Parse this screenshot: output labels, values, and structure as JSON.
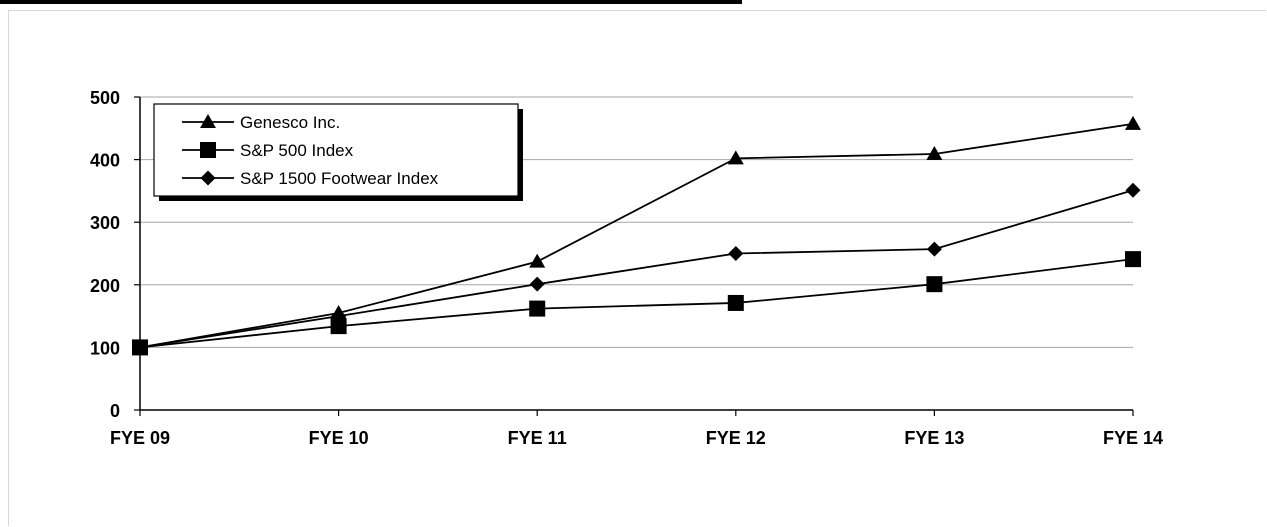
{
  "chart_data": {
    "type": "line",
    "title": "",
    "xlabel": "",
    "ylabel": "",
    "categories": [
      "FYE 09",
      "FYE 10",
      "FYE 11",
      "FYE 12",
      "FYE 13",
      "FYE 14"
    ],
    "ylim": [
      0,
      500
    ],
    "yticks": [
      0,
      100,
      200,
      300,
      400,
      500
    ],
    "grid": true,
    "legend_position": "top-left",
    "series": [
      {
        "name": "Genesco Inc.",
        "marker": "triangle",
        "values": [
          100,
          155,
          237,
          402,
          409,
          457
        ]
      },
      {
        "name": "S&P 500 Index",
        "marker": "square",
        "values": [
          100,
          134,
          162,
          171,
          201,
          241
        ]
      },
      {
        "name": "S&P 1500 Footwear Index",
        "marker": "diamond",
        "values": [
          100,
          150,
          201,
          250,
          257,
          351
        ]
      }
    ]
  }
}
